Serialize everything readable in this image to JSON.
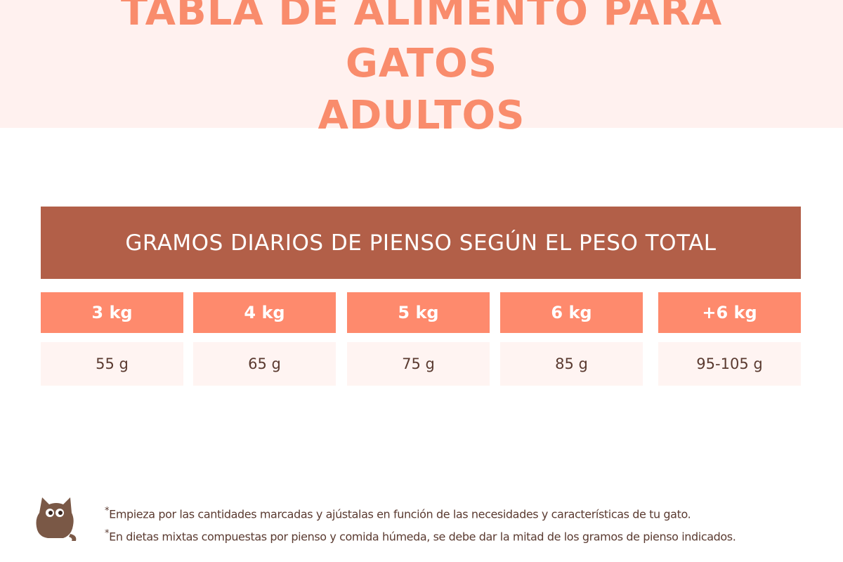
{
  "colors": {
    "header_bg": "#fff1ef",
    "title": "#f98c6c",
    "banner_bg": "#b25f48",
    "column_header_bg": "#fe8a6d",
    "value_bg": "#fff4f2",
    "text_dark": "#5a3a30",
    "cat_body": "#7a5846"
  },
  "header": {
    "title_line1": "TABLA DE ALIMENTO PARA GATOS",
    "title_line2": "ADULTOS"
  },
  "table": {
    "banner": "GRAMOS DIARIOS DE PIENSO SEGÚN EL PESO TOTAL",
    "columns": [
      {
        "weight": "3 kg",
        "amount": "55 g"
      },
      {
        "weight": "4 kg",
        "amount": "65 g"
      },
      {
        "weight": "5 kg",
        "amount": "75 g"
      },
      {
        "weight": "6 kg",
        "amount": "85 g"
      },
      {
        "weight": "+6 kg",
        "amount": "95-105 g"
      }
    ]
  },
  "footer": {
    "icon": "cat-icon",
    "note1": "Empieza por las cantidades marcadas y ajústalas en función de las necesidades y características de tu gato.",
    "note2": "En dietas mixtas compuestas por pienso y comida húmeda, se debe dar la mitad de los gramos de pienso indicados.",
    "asterisk": "*"
  }
}
